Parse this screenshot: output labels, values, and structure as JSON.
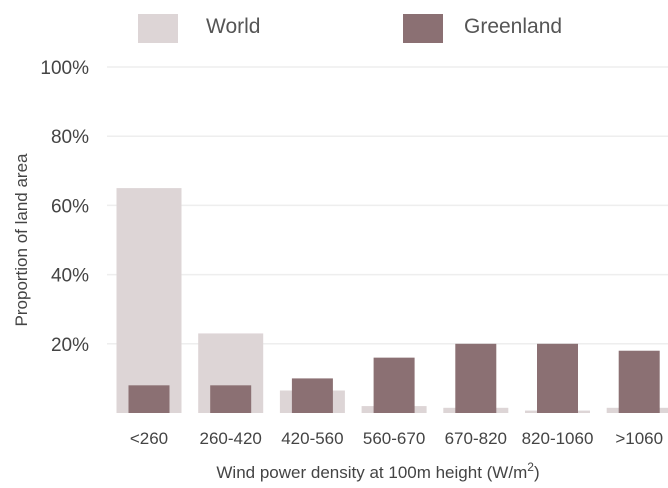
{
  "chart_data": {
    "type": "bar",
    "categories": [
      "<260",
      "260-420",
      "420-560",
      "560-670",
      "670-820",
      "820-1060",
      ">1060"
    ],
    "series": [
      {
        "name": "World",
        "values": [
          65,
          23,
          6.5,
          2,
          1.5,
          0.7,
          1.5
        ],
        "color": "#ddd5d6"
      },
      {
        "name": "Greenland",
        "values": [
          8,
          8,
          10,
          16,
          20,
          20,
          18
        ],
        "color": "#8b7073"
      }
    ],
    "ylim": [
      0,
      100
    ],
    "yticks": [
      20,
      40,
      60,
      80,
      100
    ],
    "ytick_suffix": "%",
    "ylabel": "Proportion of land area",
    "xlabel_prefix": "Wind power density at 100m height (W/m",
    "xlabel_superscript": "2",
    "xlabel_suffix": ")",
    "grid": true,
    "legend_position": "top"
  }
}
